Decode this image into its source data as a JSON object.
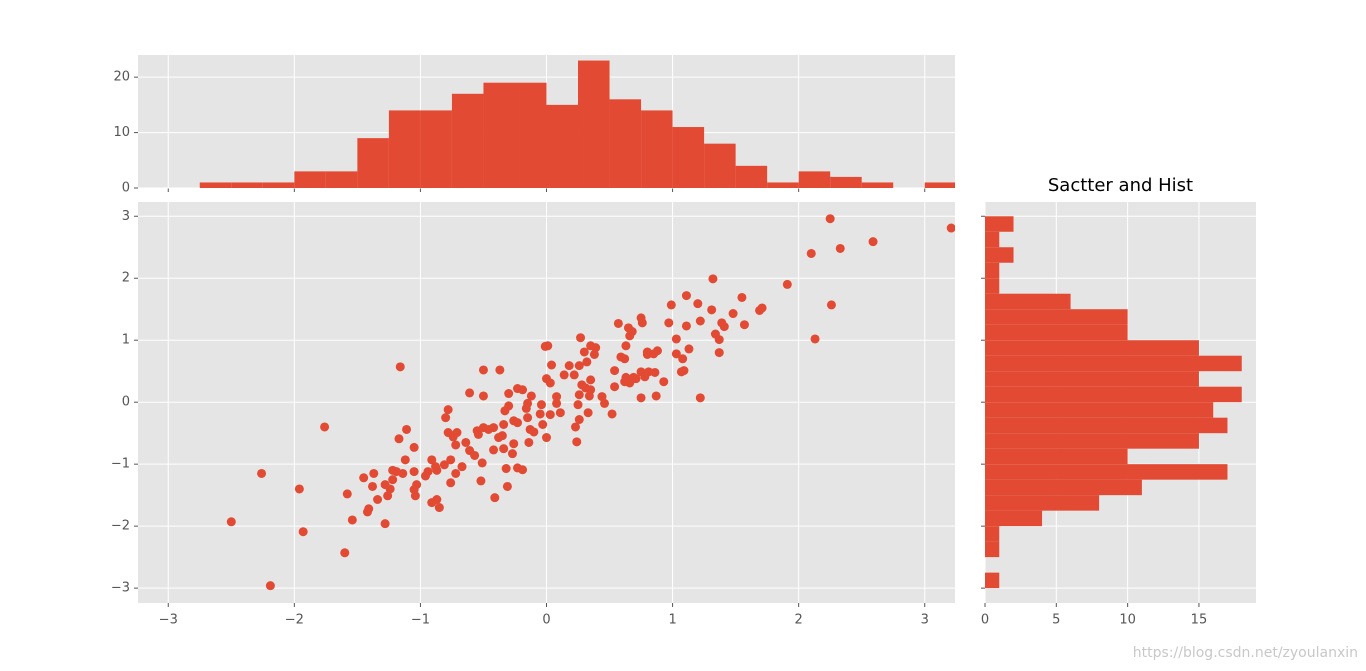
{
  "chart_data": [
    {
      "type": "scatter",
      "color": "#e24a33",
      "grid": true,
      "xlim": [
        -3.24,
        3.24
      ],
      "ylim": [
        -3.24,
        3.23
      ],
      "xticks": [
        {
          "value": -3,
          "label": "−3"
        },
        {
          "value": -2,
          "label": "−2"
        },
        {
          "value": -1,
          "label": "−1"
        },
        0,
        1,
        2,
        3
      ],
      "yticks": [
        {
          "value": -3,
          "label": "−3"
        },
        {
          "value": -2,
          "label": "−2"
        },
        {
          "value": -1,
          "label": "−1"
        },
        0,
        1,
        2,
        3
      ],
      "x": [
        -2.5,
        -2.26,
        -2.19,
        -1.96,
        -1.93,
        -1.76,
        -1.6,
        -1.58,
        -1.54,
        -1.45,
        -1.42,
        -1.41,
        -1.38,
        -1.37,
        -1.34,
        -1.28,
        -1.28,
        -1.26,
        -1.24,
        -1.22,
        -1.22,
        -1.19,
        -1.17,
        -1.16,
        -1.14,
        -1.12,
        -1.11,
        -1.05,
        -1.05,
        -1.05,
        -1.04,
        -1.03,
        -0.96,
        -0.94,
        -0.91,
        -0.91,
        -0.88,
        -0.87,
        -0.87,
        -0.85,
        -0.81,
        -0.8,
        -0.78,
        -0.78,
        -0.76,
        -0.76,
        -0.74,
        -0.72,
        -0.72,
        -0.71,
        -0.67,
        -0.64,
        -0.61,
        -0.61,
        -0.57,
        -0.55,
        -0.54,
        -0.52,
        -0.51,
        -0.5,
        -0.5,
        -0.5,
        -0.46,
        -0.42,
        -0.42,
        -0.41,
        -0.38,
        -0.37,
        -0.35,
        -0.34,
        -0.34,
        -0.33,
        -0.32,
        -0.31,
        -0.3,
        -0.3,
        -0.27,
        -0.26,
        -0.26,
        -0.23,
        -0.23,
        -0.23,
        -0.19,
        -0.19,
        -0.16,
        -0.15,
        -0.15,
        -0.14,
        -0.13,
        -0.12,
        -0.1,
        -0.05,
        -0.04,
        -0.03,
        -0.01,
        0,
        0,
        0.01,
        0.03,
        0.03,
        0.04,
        0.08,
        0.08,
        0.11,
        0.14,
        0.18,
        0.22,
        0.23,
        0.24,
        0.25,
        0.26,
        0.26,
        0.26,
        0.27,
        0.28,
        0.3,
        0.32,
        0.31,
        0.33,
        0.34,
        0.35,
        0.35,
        0.35,
        0.38,
        0.39,
        0.44,
        0.46,
        0.52,
        0.54,
        0.54,
        0.57,
        0.59,
        0.62,
        0.62,
        0.63,
        0.63,
        0.65,
        0.66,
        0.66,
        0.68,
        0.69,
        0.71,
        0.75,
        0.75,
        0.75,
        0.76,
        0.78,
        0.8,
        0.8,
        0.81,
        0.85,
        0.86,
        0.87,
        0.88,
        0.93,
        0.97,
        0.99,
        1.03,
        1.03,
        1.07,
        1.08,
        1.09,
        1.11,
        1.11,
        1.13,
        1.2,
        1.22,
        1.22,
        1.31,
        1.32,
        1.34,
        1.37,
        1.37,
        1.39,
        1.41,
        1.48,
        1.55,
        1.57,
        1.69,
        1.71,
        1.91,
        2.1,
        2.13,
        2.25,
        2.26,
        2.33,
        2.59,
        3.21
      ],
      "values": [
        -1.93,
        -1.15,
        -2.96,
        -1.4,
        -2.09,
        -0.4,
        -2.43,
        -1.48,
        -1.9,
        -1.22,
        -1.77,
        -1.72,
        -1.36,
        -1.15,
        -1.57,
        -1.33,
        -1.96,
        -1.51,
        -1.4,
        -1.25,
        -1.1,
        -1.12,
        -0.59,
        0.57,
        -1.15,
        -0.93,
        -0.44,
        -0.73,
        -1.12,
        -1.41,
        -1.51,
        -1.33,
        -1.19,
        -1.12,
        -0.93,
        -1.62,
        -1.04,
        -1.1,
        -1.57,
        -1.7,
        -1.01,
        -0.25,
        -0.12,
        -0.49,
        -0.93,
        -1.3,
        -0.56,
        -0.69,
        -1.15,
        -0.49,
        -1.04,
        -0.65,
        0.15,
        -0.78,
        -0.86,
        -0.46,
        -0.52,
        -1.27,
        -0.98,
        0.52,
        0.1,
        -0.41,
        -0.44,
        -0.77,
        -0.41,
        -1.54,
        -0.57,
        0.52,
        -0.54,
        -0.75,
        -0.36,
        -0.14,
        -1.07,
        -1.36,
        0.14,
        -0.06,
        -0.83,
        -0.67,
        -0.3,
        -0.33,
        0.22,
        -1.06,
        0.2,
        -1.09,
        -0.1,
        -0.25,
        -0.02,
        -0.65,
        -0.44,
        0.1,
        -0.48,
        -0.19,
        -0.04,
        -0.36,
        0.9,
        -0.57,
        0.38,
        0.91,
        0.31,
        -0.2,
        0.6,
        0.09,
        -0.02,
        -0.17,
        0.44,
        0.59,
        0.44,
        -0.4,
        -0.64,
        -0.04,
        0.59,
        -0.28,
        0.12,
        1.04,
        0.28,
        0.81,
        0.65,
        0.23,
        -0.17,
        0.1,
        0.36,
        0.2,
        0.91,
        0.77,
        0.88,
        0.09,
        -0.02,
        -0.19,
        0.25,
        0.51,
        1.27,
        0.73,
        0.7,
        0.33,
        0.91,
        0.4,
        1.2,
        1.07,
        0.31,
        1.14,
        0.4,
        0.38,
        1.36,
        0.49,
        0.07,
        1.28,
        0.41,
        0.81,
        0.77,
        0.49,
        0.78,
        0.48,
        0.1,
        0.83,
        0.33,
        1.28,
        1.57,
        1.02,
        0.78,
        0.49,
        0.7,
        0.51,
        1.72,
        1.23,
        0.86,
        1.59,
        0.07,
        1.31,
        1.49,
        1.99,
        1.1,
        1.01,
        0.8,
        1.28,
        1.22,
        1.43,
        1.69,
        1.25,
        1.48,
        1.52,
        1.9,
        2.4,
        1.02,
        2.96,
        1.57,
        2.48,
        2.59,
        2.81
      ]
    },
    {
      "type": "histogram",
      "orientation": "vertical",
      "color": "#e24a33",
      "grid": true,
      "xlim": [
        -3.24,
        3.24
      ],
      "ylim": [
        0,
        24
      ],
      "xticks": [
        -3,
        -2,
        -1,
        0,
        1,
        2,
        3
      ],
      "xtick_labels": false,
      "yticks": [
        0,
        10,
        20
      ],
      "bins": [
        -2.75,
        -2.5,
        -2.25,
        -2,
        -1.75,
        -1.5,
        -1.25,
        -1,
        -0.75,
        -0.5,
        -0.25,
        0,
        0.25,
        0.5,
        0.75,
        1,
        1.25,
        1.5,
        1.75,
        2,
        2.25,
        2.5,
        2.75,
        3,
        3.25
      ],
      "values": [
        1,
        1,
        1,
        3,
        3,
        9,
        14,
        14,
        17,
        19,
        19,
        15,
        23,
        16,
        14,
        11,
        8,
        4,
        1,
        3,
        2,
        1,
        0,
        1
      ]
    },
    {
      "type": "histogram",
      "orientation": "horizontal",
      "color": "#e24a33",
      "grid": true,
      "title": "Sactter and Hist",
      "xlim": [
        0,
        19
      ],
      "ylim": [
        -3.24,
        3.23
      ],
      "xticks": [
        0,
        5,
        10,
        15
      ],
      "yticks": [
        -3,
        -2,
        -1,
        0,
        1,
        2,
        3
      ],
      "ytick_labels": false,
      "bins": [
        -3,
        -2.75,
        -2.5,
        -2.25,
        -2,
        -1.75,
        -1.5,
        -1.25,
        -1,
        -0.75,
        -0.5,
        -0.25,
        0,
        0.25,
        0.5,
        0.75,
        1,
        1.25,
        1.5,
        1.75,
        2,
        2.25,
        2.5,
        2.75,
        3
      ],
      "values": [
        1,
        0,
        1,
        1,
        4,
        8,
        11,
        17,
        10,
        15,
        17,
        16,
        18,
        15,
        18,
        15,
        10,
        10,
        6,
        1,
        1,
        2,
        1,
        2
      ]
    }
  ],
  "watermark": "https://blog.csdn.net/zyoulanxin"
}
